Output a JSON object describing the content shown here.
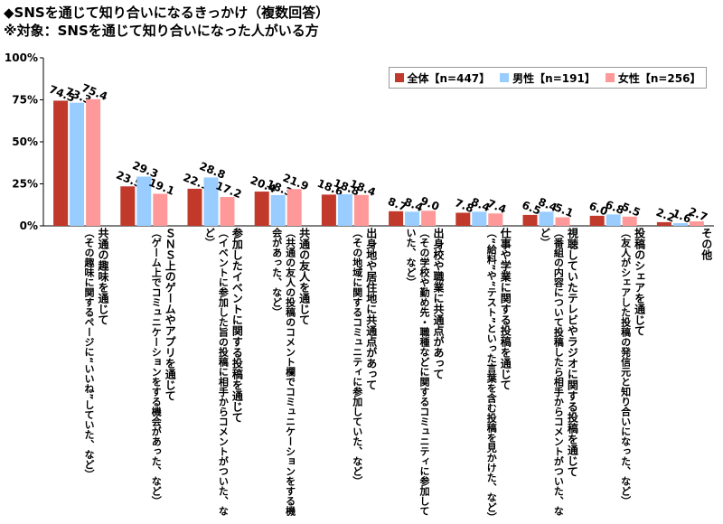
{
  "titles": {
    "line1": "◆SNSを通じて知り合いになるきっかけ（複数回答）",
    "line2": "※対象：SNSを通じて知り合いになった人がいる方"
  },
  "colors": {
    "all": "#c0392b",
    "male": "#99ccff",
    "female": "#ff9999"
  },
  "chart_data": {
    "type": "bar",
    "ylim": [
      0,
      100
    ],
    "yticks": [
      "0%",
      "25%",
      "50%",
      "75%",
      "100%"
    ],
    "grid": false,
    "legend_position": "top-right",
    "categories": [
      {
        "main": "共通の趣味を通じて",
        "sub": "（その趣味に関するページに“いいね”していた、など）"
      },
      {
        "main": "ＳＮＳ上のゲームやアプリを通じて",
        "sub": "（ゲーム上でコミュニケーションをする機会があった、など）"
      },
      {
        "main": "参加したイベントに関する投稿を通じて",
        "sub": "（イベントに参加した旨の投稿に相手からコメントがついた、など）"
      },
      {
        "main": "共通の友人を通じて",
        "sub": "（共通の友人の投稿のコメント欄でコミュニケーションをする機会があった、など）"
      },
      {
        "main": "出身地や居住地に共通点があって",
        "sub": "（その地域に関するコミュニティに参加していた、など）"
      },
      {
        "main": "出身校や職業に共通点があって",
        "sub": "（その学校や勤め先・職種などに関するコミュニティに参加していた、など）"
      },
      {
        "main": "仕事や学業に関する投稿を通じて",
        "sub": "（“給料”や“テスト”といった言葉を含む投稿を見かけた、など）"
      },
      {
        "main": "視聴していたテレビやラジオに関する投稿を通じて",
        "sub": "（番組の内容について投稿したら相手からコメントがついた、など）"
      },
      {
        "main": "投稿のシェアを通じて",
        "sub": "（友人がシェアした投稿の発信元と知り合いになった、など）"
      },
      {
        "main": "その他",
        "sub": ""
      }
    ],
    "series": [
      {
        "name": "全体【n=447】",
        "values": [
          74.5,
          23.5,
          22.1,
          20.4,
          18.6,
          8.7,
          7.8,
          6.5,
          6.0,
          2.2
        ]
      },
      {
        "name": "男性【n=191】",
        "values": [
          73.3,
          29.3,
          28.8,
          18.3,
          18.8,
          8.4,
          8.4,
          8.4,
          6.8,
          1.6
        ]
      },
      {
        "name": "女性【n=256】",
        "values": [
          75.4,
          19.1,
          17.2,
          21.9,
          18.4,
          9.0,
          7.4,
          5.1,
          5.5,
          2.7
        ]
      }
    ]
  }
}
